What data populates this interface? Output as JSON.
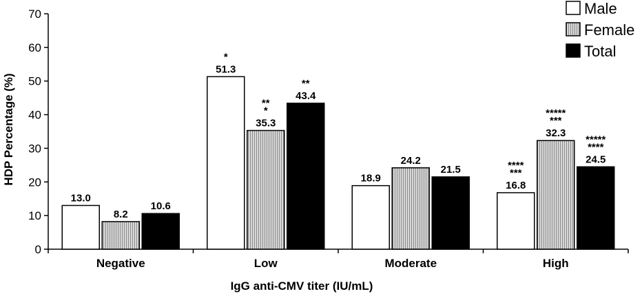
{
  "chart_data": {
    "type": "bar",
    "categories": [
      "Negative",
      "Low",
      "Moderate",
      "High"
    ],
    "series": [
      {
        "name": "Male",
        "values": [
          13.0,
          51.3,
          18.9,
          16.8
        ],
        "fill": "#ffffff",
        "annotations": [
          "",
          "*",
          "",
          "****\n***"
        ]
      },
      {
        "name": "Female",
        "values": [
          8.2,
          35.3,
          24.2,
          32.3
        ],
        "fill": "#c4c4c4",
        "annotations": [
          "",
          "**\n*",
          "",
          "*****\n***"
        ]
      },
      {
        "name": "Total",
        "values": [
          10.6,
          43.4,
          21.5,
          24.5
        ],
        "fill": "#000000",
        "annotations": [
          "",
          "**",
          "",
          "*****\n****"
        ]
      }
    ],
    "data_labels": [
      [
        "13.0",
        "51.3",
        "18.9",
        "16.8"
      ],
      [
        "8.2",
        "35.3",
        "24.2",
        "32.3"
      ],
      [
        "10.6",
        "43.4",
        "21.5",
        "24.5"
      ]
    ],
    "xlabel": "IgG anti-CMV titer (IU/mL)",
    "ylabel": "HDP Percentage (%)",
    "ylim": [
      0,
      70
    ],
    "yticks": [
      "0",
      "10",
      "20",
      "30",
      "40",
      "50",
      "60",
      "70"
    ],
    "grid": false,
    "legend": "top-right"
  }
}
